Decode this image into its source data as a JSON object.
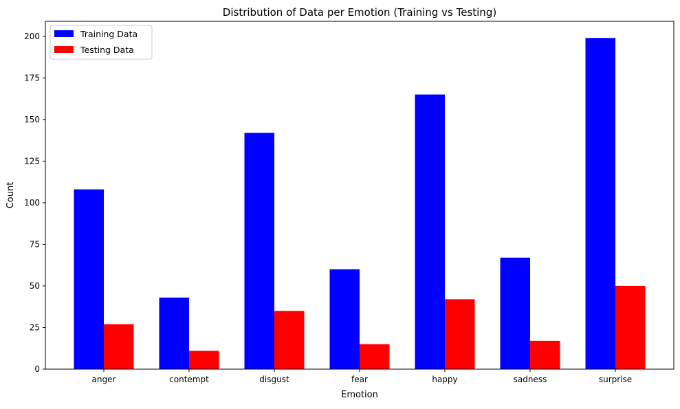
{
  "chart_data": {
    "type": "bar",
    "title": "Distribution of Data per Emotion (Training vs Testing)",
    "xlabel": "Emotion",
    "ylabel": "Count",
    "categories": [
      "anger",
      "contempt",
      "disgust",
      "fear",
      "happy",
      "sadness",
      "surprise"
    ],
    "series": [
      {
        "name": "Training Data",
        "color": "#0000ff",
        "values": [
          108,
          43,
          142,
          60,
          165,
          67,
          199
        ]
      },
      {
        "name": "Testing Data",
        "color": "#ff0000",
        "values": [
          27,
          11,
          35,
          15,
          42,
          17,
          50
        ]
      }
    ],
    "ylim": [
      0,
      209
    ],
    "yticks": [
      0,
      25,
      50,
      75,
      100,
      125,
      150,
      175,
      200
    ],
    "grid": false,
    "legend_position": "upper-left"
  }
}
